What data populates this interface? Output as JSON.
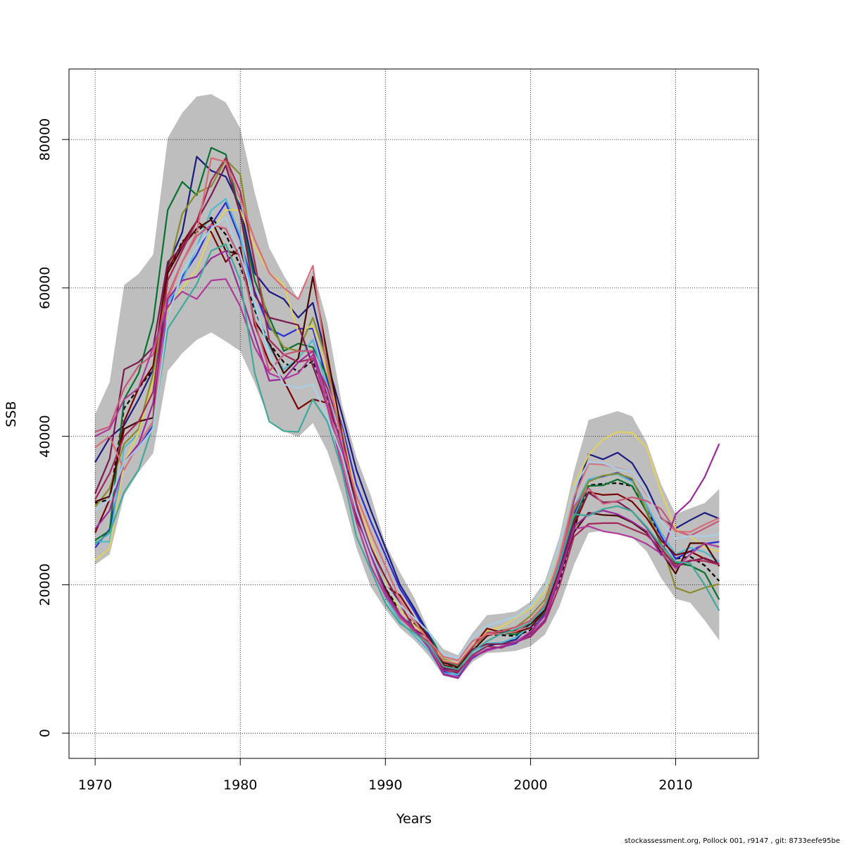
{
  "chart_data": {
    "type": "line",
    "title": "",
    "xlabel": "Years",
    "ylabel": "SSB",
    "xlim": [
      1968.2,
      2015.7
    ],
    "ylim": [
      -3400,
      89500
    ],
    "x_ticks": [
      1970,
      1980,
      1990,
      2000,
      2010
    ],
    "y_ticks": [
      0,
      20000,
      40000,
      60000,
      80000
    ],
    "grid": "dotted",
    "legend": "none",
    "x": [
      1970,
      1971,
      1972,
      1973,
      1974,
      1975,
      1976,
      1977,
      1978,
      1979,
      1980,
      1981,
      1982,
      1983,
      1984,
      1985,
      1986,
      1987,
      1988,
      1989,
      1990,
      1991,
      1992,
      1993,
      1994,
      1995,
      1996,
      1997,
      1998,
      1999,
      2000,
      2001,
      2002,
      2003,
      2004,
      2005,
      2006,
      2007,
      2008,
      2009,
      2010,
      2011,
      2012,
      2013
    ],
    "band": {
      "color": "#bebebe",
      "upper": [
        43000,
        47300,
        60400,
        61900,
        64500,
        80200,
        83600,
        85800,
        86100,
        85000,
        81500,
        72800,
        65400,
        61700,
        58500,
        62500,
        55300,
        44300,
        37200,
        32000,
        25500,
        21700,
        18200,
        13800,
        11300,
        10500,
        13500,
        15900,
        16100,
        16400,
        17700,
        20500,
        26500,
        35300,
        42200,
        42800,
        43400,
        42700,
        39200,
        33500,
        29500,
        30300,
        31000,
        32900
      ],
      "lower": [
        22700,
        24100,
        32000,
        35200,
        37700,
        48800,
        51200,
        53000,
        54000,
        52800,
        51500,
        47200,
        42200,
        40700,
        39900,
        41800,
        38000,
        32200,
        25000,
        19700,
        16700,
        14200,
        12500,
        10400,
        7700,
        7300,
        9600,
        10800,
        10900,
        11100,
        11700,
        13300,
        17100,
        22700,
        27000,
        27300,
        27000,
        26400,
        24500,
        20900,
        18100,
        17600,
        15200,
        12500
      ]
    },
    "series": [
      {
        "color": "#000000",
        "dashed": true,
        "values": [
          31000,
          31500,
          43800,
          46500,
          49000,
          62000,
          66300,
          67500,
          69500,
          67200,
          63000,
          57000,
          52500,
          50000,
          48700,
          50200,
          45000,
          39000,
          29500,
          25000,
          19500,
          16600,
          14700,
          12500,
          9200,
          8700,
          11600,
          13300,
          13200,
          13100,
          13900,
          16000,
          20500,
          27500,
          33400,
          33600,
          33700,
          33300,
          30000,
          26500,
          23500,
          23800,
          22600,
          20500
        ]
      },
      {
        "color": "#1a1a80",
        "values": [
          36500,
          39800,
          41500,
          45000,
          49000,
          63000,
          67500,
          77700,
          75800,
          75000,
          71000,
          62000,
          59500,
          58500,
          56000,
          58000,
          50000,
          43000,
          35500,
          30000,
          25000,
          20000,
          16800,
          13300,
          8600,
          8100,
          10600,
          11700,
          12200,
          12600,
          14700,
          17400,
          23600,
          31500,
          37600,
          36900,
          37800,
          36400,
          33200,
          29000,
          27600,
          28700,
          29700,
          28900
        ]
      },
      {
        "color": "#2a2ad8",
        "values": [
          25000,
          27500,
          36500,
          38500,
          41500,
          57000,
          61500,
          64500,
          68500,
          71500,
          66500,
          59500,
          54500,
          53500,
          54500,
          54500,
          47500,
          41500,
          33500,
          28500,
          24000,
          19500,
          16400,
          12900,
          8300,
          7800,
          10100,
          11300,
          11600,
          12100,
          13700,
          16100,
          22100,
          29500,
          34100,
          34600,
          35100,
          34100,
          30700,
          26500,
          23500,
          24500,
          25500,
          25800
        ]
      },
      {
        "color": "#087030",
        "values": [
          26000,
          27300,
          45000,
          48500,
          55500,
          70500,
          74300,
          72500,
          78900,
          78000,
          70000,
          61000,
          56000,
          51500,
          52500,
          52000,
          48000,
          41000,
          30000,
          24500,
          18600,
          15600,
          14600,
          13600,
          9600,
          9200,
          11600,
          13600,
          13500,
          13300,
          14300,
          16300,
          21800,
          28800,
          33300,
          33400,
          34200,
          33300,
          29800,
          25500,
          22900,
          22600,
          21600,
          18000
        ]
      },
      {
        "color": "#50b8d0",
        "values": [
          25800,
          25800,
          38500,
          40300,
          48000,
          58000,
          61000,
          65500,
          70500,
          72000,
          67000,
          57500,
          52000,
          49000,
          50500,
          53000,
          46500,
          40000,
          30500,
          24500,
          18300,
          15100,
          13100,
          11100,
          8100,
          7900,
          10600,
          12100,
          12200,
          12900,
          14500,
          16900,
          23100,
          30400,
          34200,
          34700,
          34900,
          33900,
          30700,
          27000,
          24100,
          25000,
          24400,
          23100
        ]
      },
      {
        "color": "#8a8a2a",
        "values": [
          30500,
          33000,
          39000,
          41000,
          48500,
          62000,
          70000,
          72800,
          73700,
          77300,
          75300,
          63000,
          55000,
          52000,
          51500,
          56000,
          50000,
          40500,
          30500,
          25000,
          19500,
          16000,
          13500,
          12000,
          10000,
          9300,
          11700,
          13200,
          13800,
          14300,
          15800,
          18000,
          23500,
          30000,
          33900,
          34700,
          35000,
          34300,
          30000,
          25700,
          19600,
          18900,
          19600,
          20100
        ]
      },
      {
        "color": "#e0d060",
        "values": [
          23300,
          24900,
          36500,
          40500,
          47500,
          57000,
          60000,
          62500,
          67500,
          70500,
          70500,
          65500,
          62000,
          60500,
          54000,
          55000,
          48500,
          41000,
          32000,
          26000,
          20500,
          16600,
          14500,
          12500,
          9800,
          9400,
          11800,
          13800,
          14300,
          15600,
          16800,
          19100,
          25500,
          33500,
          37500,
          39600,
          40600,
          40500,
          38500,
          32500,
          27500,
          26500,
          25000,
          24500
        ]
      },
      {
        "color": "#7a0000",
        "values": [
          27000,
          31500,
          42000,
          46500,
          49500,
          62500,
          66000,
          69000,
          67500,
          63500,
          65500,
          55000,
          50000,
          47500,
          43700,
          45000,
          44500,
          39000,
          29000,
          24500,
          19800,
          18600,
          15500,
          12800,
          9200,
          8600,
          11600,
          14100,
          13600,
          13600,
          14200,
          16600,
          22000,
          28000,
          32500,
          32100,
          32200,
          31200,
          29000,
          26000,
          24000,
          24500,
          23500,
          22800
        ]
      },
      {
        "color": "#4a0800",
        "values": [
          31200,
          31900,
          41000,
          42000,
          42500,
          62000,
          65500,
          68000,
          69200,
          65000,
          64500,
          55500,
          52500,
          48500,
          50500,
          61500,
          51000,
          40500,
          30000,
          25000,
          19500,
          16000,
          13800,
          12200,
          9500,
          8900,
          11100,
          13100,
          13800,
          13800,
          14700,
          16600,
          21200,
          27100,
          29700,
          29400,
          29300,
          28400,
          27000,
          24400,
          21500,
          25600,
          25600,
          22500
        ]
      },
      {
        "color": "#7a1a50",
        "values": [
          32300,
          37000,
          49000,
          50000,
          52000,
          63500,
          65500,
          69000,
          72500,
          76500,
          70000,
          59000,
          56000,
          55500,
          55000,
          49500,
          44000,
          37500,
          30500,
          25000,
          21000,
          17500,
          14000,
          12800,
          8800,
          8400,
          11300,
          12000,
          12000,
          12300,
          13500,
          15900,
          21900,
          28500,
          32400,
          31100,
          31200,
          29900,
          27700,
          24900,
          22400,
          23200,
          23600,
          22800
        ]
      },
      {
        "color": "#a3285a",
        "values": [
          31500,
          35000,
          40000,
          42000,
          46000,
          61000,
          65000,
          69000,
          74500,
          77500,
          73000,
          63500,
          53000,
          51000,
          50000,
          50500,
          46500,
          40500,
          31000,
          24800,
          20000,
          17500,
          14000,
          12000,
          8500,
          8200,
          10500,
          11700,
          11500,
          12300,
          13000,
          15000,
          19900,
          26500,
          28200,
          28300,
          28300,
          27500,
          26700,
          24900,
          22600,
          23300,
          23200,
          22700
        ]
      },
      {
        "color": "#c8587a",
        "values": [
          40600,
          41300,
          46500,
          49500,
          51000,
          59000,
          63500,
          67000,
          68500,
          68000,
          64000,
          55500,
          48800,
          51000,
          51500,
          51500,
          44500,
          37000,
          29500,
          24000,
          18800,
          15500,
          13800,
          12100,
          9700,
          9300,
          11700,
          13500,
          13700,
          14300,
          15200,
          17400,
          23400,
          30600,
          33000,
          30900,
          31300,
          31800,
          31300,
          30200,
          27300,
          26600,
          27600,
          28600
        ]
      },
      {
        "color": "#d86e78",
        "values": [
          38500,
          40000,
          35500,
          39000,
          42000,
          58500,
          63500,
          67500,
          77500,
          77000,
          72000,
          66500,
          62000,
          60000,
          58500,
          63000,
          49000,
          39000,
          32000,
          27000,
          22500,
          18000,
          15000,
          12400,
          10300,
          9800,
          12400,
          13300,
          13400,
          13700,
          15000,
          17500,
          23800,
          31800,
          36300,
          36200,
          35700,
          35200,
          32200,
          29100,
          27200,
          27100,
          28100,
          29000
        ]
      },
      {
        "color": "#b03a9a",
        "values": [
          40000,
          41000,
          45000,
          46500,
          52000,
          57500,
          59500,
          58500,
          61000,
          61200,
          57500,
          52000,
          48500,
          47700,
          48500,
          51000,
          44000,
          36000,
          28500,
          22500,
          18500,
          15800,
          13800,
          11500,
          7900,
          7400,
          10300,
          11100,
          11700,
          12300,
          13700,
          15800,
          21400,
          27500,
          27900,
          27200,
          26900,
          26400,
          25500,
          24200,
          22200,
          24100,
          25600,
          25100
        ]
      },
      {
        "color": "#9a2a9a",
        "values": [
          27500,
          30000,
          36500,
          39000,
          44500,
          58500,
          61000,
          61500,
          64000,
          65000,
          59500,
          53500,
          47500,
          47700,
          50000,
          51500,
          45500,
          38500,
          29500,
          24000,
          19000,
          16000,
          14000,
          11500,
          8000,
          7500,
          10200,
          11300,
          11600,
          12200,
          13200,
          15300,
          21000,
          27800,
          29500,
          30000,
          29500,
          28500,
          27200,
          24000,
          29500,
          31300,
          34500,
          39000
        ]
      },
      {
        "color": "#40a898",
        "values": [
          25500,
          27000,
          32500,
          35500,
          41500,
          54500,
          57500,
          60500,
          65000,
          65900,
          61000,
          48500,
          42000,
          40700,
          40600,
          45000,
          42000,
          35500,
          26500,
          22000,
          17500,
          14800,
          13500,
          11900,
          9000,
          8600,
          11000,
          12400,
          13400,
          14000,
          14900,
          17100,
          22800,
          29500,
          29300,
          30200,
          30600,
          29900,
          27800,
          25300,
          23100,
          22900,
          20000,
          16500
        ]
      },
      {
        "color": "#a8d0e8",
        "values": [
          30000,
          31500,
          36500,
          38500,
          41000,
          56000,
          62000,
          65500,
          68000,
          69500,
          64500,
          58000,
          51000,
          47000,
          46500,
          47000,
          42500,
          37500,
          30000,
          24500,
          20000,
          17300,
          15500,
          13600,
          10600,
          10100,
          12900,
          14500,
          15100,
          15700,
          17200,
          19600,
          25500,
          33100,
          36500,
          36400,
          35600,
          35200,
          32400,
          28500,
          26200,
          26600,
          26500,
          26800
        ]
      }
    ]
  },
  "footer": {
    "text": "stockassessment.org, Pollock  001, r9147 , git: 8733eefe95be"
  }
}
